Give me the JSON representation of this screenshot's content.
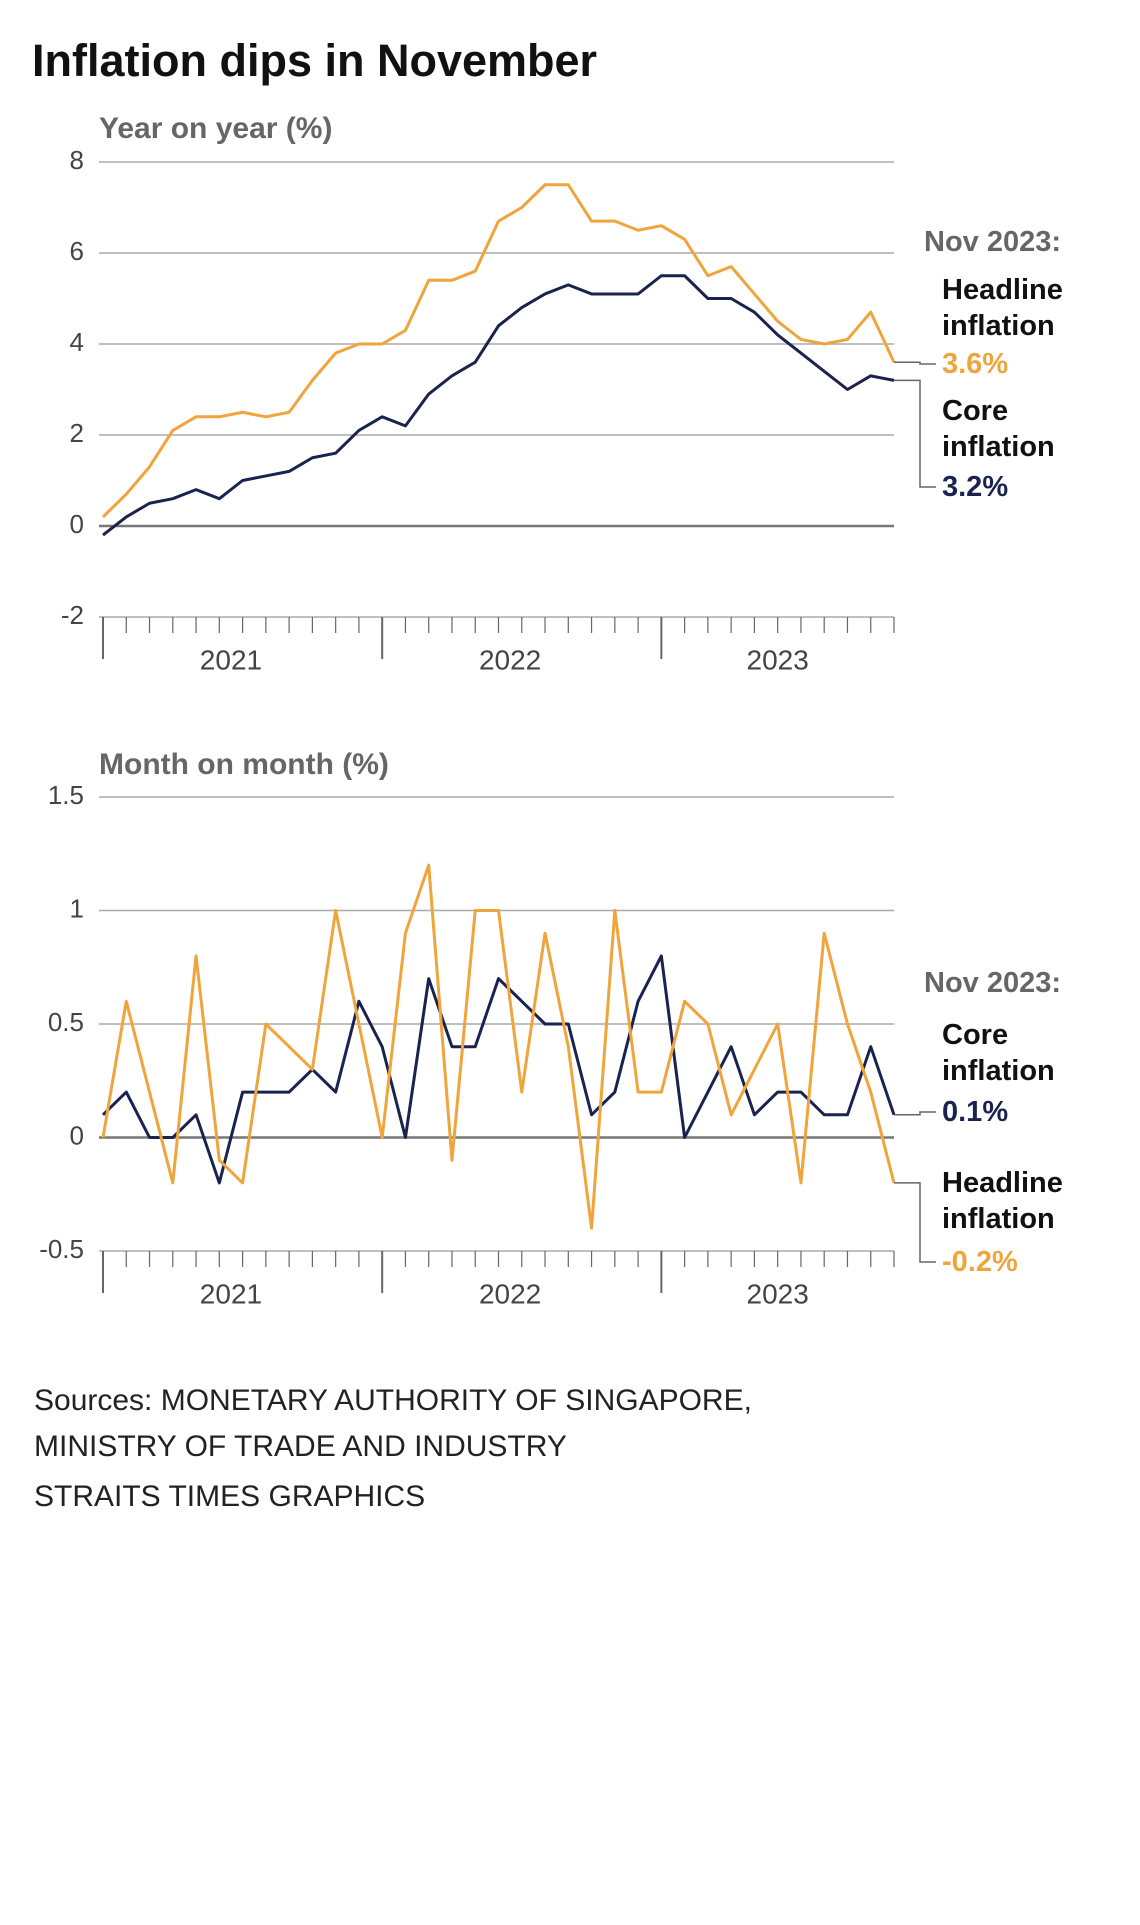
{
  "title": "Inflation dips in November",
  "chart_data": [
    {
      "type": "line",
      "axis_label": "Year on year (%)",
      "ylim": [
        -2,
        8
      ],
      "yticks": [
        -2,
        0,
        2,
        4,
        6,
        8
      ],
      "grid": true,
      "years": [
        "2021",
        "2022",
        "2023"
      ],
      "annotation_title": "Nov 2023:",
      "series": [
        {
          "name": "Headline inflation",
          "color": "#f0a43c",
          "values": [
            0.2,
            0.7,
            1.3,
            2.1,
            2.4,
            2.4,
            2.5,
            2.4,
            2.5,
            3.2,
            3.8,
            4.0,
            4.0,
            4.3,
            5.4,
            5.4,
            5.6,
            6.7,
            7.0,
            7.5,
            7.5,
            6.7,
            6.7,
            6.5,
            6.6,
            6.3,
            5.5,
            5.7,
            5.1,
            4.5,
            4.1,
            4.0,
            4.1,
            4.7,
            3.6
          ],
          "value_labels": [
            null,
            null,
            null,
            null,
            null,
            null,
            null,
            null,
            null,
            null,
            null,
            null,
            null,
            null,
            null,
            null,
            null,
            null,
            null,
            null,
            null,
            null,
            null,
            null,
            null,
            null,
            null,
            null,
            null,
            null,
            null,
            null,
            null,
            null,
            "3.6%"
          ]
        },
        {
          "name": "Core inflation",
          "color": "#1a2350",
          "values": [
            -0.2,
            0.2,
            0.5,
            0.6,
            0.8,
            0.6,
            1.0,
            1.1,
            1.2,
            1.5,
            1.6,
            2.1,
            2.4,
            2.2,
            2.9,
            3.3,
            3.6,
            4.4,
            4.8,
            5.1,
            5.3,
            5.1,
            5.1,
            5.1,
            5.5,
            5.5,
            5.0,
            5.0,
            4.7,
            4.2,
            3.8,
            3.4,
            3.0,
            3.3,
            3.2
          ],
          "value_labels": [
            null,
            null,
            null,
            null,
            null,
            null,
            null,
            null,
            null,
            null,
            null,
            null,
            null,
            null,
            null,
            null,
            null,
            null,
            null,
            null,
            null,
            null,
            null,
            null,
            null,
            null,
            null,
            null,
            null,
            null,
            null,
            null,
            null,
            null,
            "3.2%"
          ]
        }
      ]
    },
    {
      "type": "line",
      "axis_label": "Month on month (%)",
      "ylim": [
        -0.5,
        1.5
      ],
      "yticks": [
        -0.5,
        0,
        0.5,
        1,
        1.5
      ],
      "grid": true,
      "years": [
        "2021",
        "2022",
        "2023"
      ],
      "annotation_title": "Nov 2023:",
      "series": [
        {
          "name": "Core inflation",
          "color": "#1a2350",
          "values": [
            0.1,
            0.2,
            0.0,
            0.0,
            0.1,
            -0.2,
            0.2,
            0.2,
            0.2,
            0.3,
            0.2,
            0.6,
            0.4,
            0.0,
            0.7,
            0.4,
            0.4,
            0.7,
            0.6,
            0.5,
            0.5,
            0.1,
            0.2,
            0.6,
            0.8,
            0.0,
            0.2,
            0.4,
            0.1,
            0.2,
            0.2,
            0.1,
            0.1,
            0.4,
            0.1
          ],
          "value_labels": [
            null,
            null,
            null,
            null,
            null,
            null,
            null,
            null,
            null,
            null,
            null,
            null,
            null,
            null,
            null,
            null,
            null,
            null,
            null,
            null,
            null,
            null,
            null,
            null,
            null,
            null,
            null,
            null,
            null,
            null,
            null,
            null,
            null,
            null,
            "0.1%"
          ]
        },
        {
          "name": "Headline inflation",
          "color": "#f0a43c",
          "values": [
            0.0,
            0.6,
            0.2,
            -0.2,
            0.8,
            -0.1,
            -0.2,
            0.5,
            0.4,
            0.3,
            1.0,
            0.5,
            0.0,
            0.9,
            1.2,
            -0.1,
            1.0,
            1.0,
            0.2,
            0.9,
            0.4,
            -0.4,
            1.0,
            0.2,
            0.2,
            0.6,
            0.5,
            0.1,
            0.3,
            0.5,
            -0.2,
            0.9,
            0.5,
            0.2,
            -0.2
          ],
          "value_labels": [
            null,
            null,
            null,
            null,
            null,
            null,
            null,
            null,
            null,
            null,
            null,
            null,
            null,
            null,
            null,
            null,
            null,
            null,
            null,
            null,
            null,
            null,
            null,
            null,
            null,
            null,
            null,
            null,
            null,
            null,
            null,
            null,
            null,
            null,
            "-0.2%"
          ]
        }
      ]
    }
  ],
  "sources": [
    "Sources: MONETARY AUTHORITY OF SINGAPORE,",
    "MINISTRY OF TRADE AND INDUSTRY",
    "STRAITS TIMES GRAPHICS"
  ]
}
